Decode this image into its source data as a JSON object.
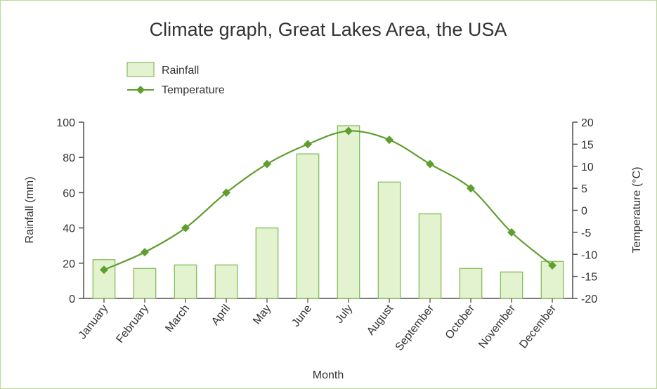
{
  "chart_data": {
    "type": "bar",
    "title": "Climate graph, Great Lakes Area, the USA",
    "xlabel": "Month",
    "ylabel": "Rainfall (mm)",
    "y2label": "Temperature (°C)",
    "categories": [
      "January",
      "February",
      "March",
      "April",
      "May",
      "June",
      "July",
      "August",
      "September",
      "October",
      "November",
      "December"
    ],
    "ylim": [
      0,
      100
    ],
    "yticks": [
      "0",
      "20",
      "40",
      "60",
      "80",
      "100"
    ],
    "y2lim": [
      -20,
      20
    ],
    "y2ticks": [
      "-20",
      "-15",
      "-10",
      "-5",
      "0",
      "5",
      "10",
      "15",
      "20"
    ],
    "legend_position": "top-left",
    "grid": false,
    "series": [
      {
        "name": "Rainfall",
        "type": "bar",
        "axis": "left",
        "color": "#e3f3cf",
        "edge_color": "#8cc063",
        "values": [
          22,
          17,
          19,
          19,
          40,
          82,
          98,
          66,
          48,
          17,
          15,
          21
        ]
      },
      {
        "name": "Temperature",
        "type": "line",
        "axis": "right",
        "color": "#5f9e2e",
        "marker": "diamond",
        "values": [
          -13.5,
          -9.5,
          -4,
          4,
          10.5,
          15,
          18,
          16,
          10.5,
          5,
          -5,
          -12.5
        ]
      }
    ]
  }
}
